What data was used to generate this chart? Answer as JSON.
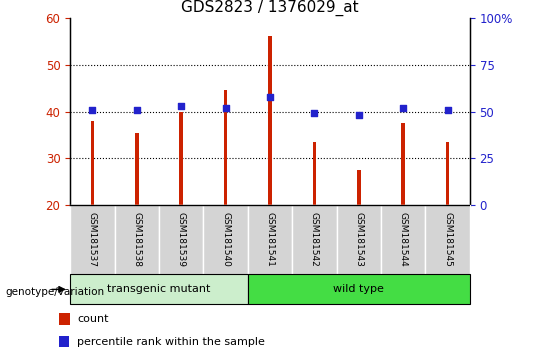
{
  "title": "GDS2823 / 1376029_at",
  "samples": [
    "GSM181537",
    "GSM181538",
    "GSM181539",
    "GSM181540",
    "GSM181541",
    "GSM181542",
    "GSM181543",
    "GSM181544",
    "GSM181545"
  ],
  "counts": [
    38,
    35.5,
    40,
    44.5,
    56,
    33.5,
    27.5,
    37.5,
    33.5
  ],
  "percentile_ranks_pct": [
    51,
    51,
    53,
    52,
    58,
    49,
    48,
    52,
    51
  ],
  "ylim_left": [
    20,
    60
  ],
  "ylim_right": [
    0,
    100
  ],
  "yticks_left": [
    20,
    30,
    40,
    50,
    60
  ],
  "yticks_right": [
    0,
    25,
    50,
    75,
    100
  ],
  "ytick_labels_right": [
    "0",
    "25",
    "50",
    "75",
    "100%"
  ],
  "groups": [
    {
      "label": "transgenic mutant",
      "start": 0,
      "end": 4,
      "color": "#cceecc"
    },
    {
      "label": "wild type",
      "start": 4,
      "end": 9,
      "color": "#44dd44"
    }
  ],
  "group_label": "genotype/variation",
  "bar_color": "#cc2200",
  "dot_color": "#2222cc",
  "bar_bottom": 20,
  "dotted_grid_values": [
    30,
    40,
    50
  ],
  "legend_count_label": "count",
  "legend_percentile_label": "percentile rank within the sample",
  "title_fontsize": 11,
  "axis_tick_color_left": "#cc2200",
  "axis_tick_color_right": "#2222cc",
  "fig_width": 5.4,
  "fig_height": 3.54,
  "dpi": 100
}
